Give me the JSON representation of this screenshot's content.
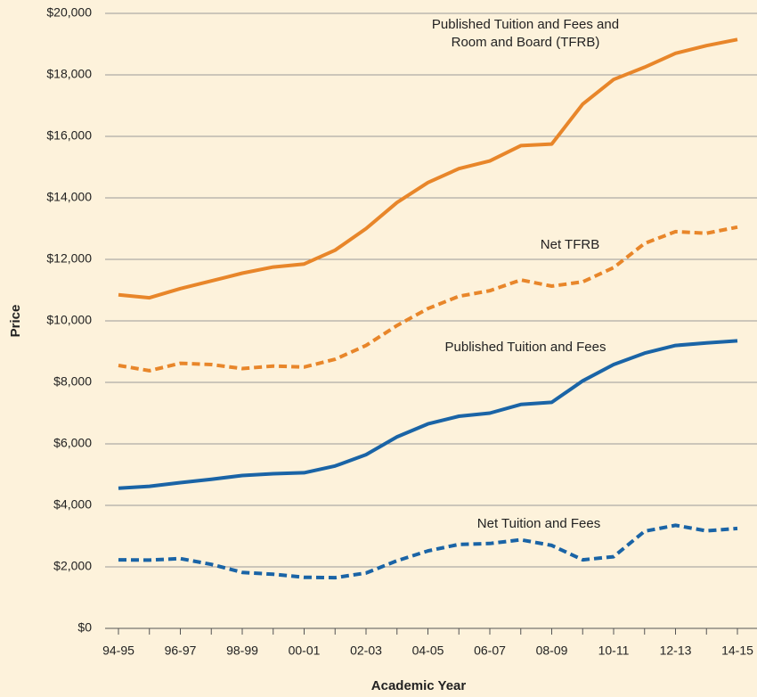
{
  "chart_data": {
    "type": "line",
    "xlabel": "Academic Year",
    "ylabel": "Price",
    "categories": [
      "94-95",
      null,
      "96-97",
      null,
      "98-99",
      null,
      "00-01",
      null,
      "02-03",
      null,
      "04-05",
      null,
      "06-07",
      null,
      "08-09",
      null,
      "10-11",
      null,
      "12-13",
      null,
      "14-15"
    ],
    "series": [
      {
        "name": "Published Tuition and Fees and Room and Board (TFRB)",
        "color": "#e8862a",
        "dash": false,
        "values": [
          10850,
          10750,
          11050,
          11300,
          11550,
          11750,
          11850,
          12300,
          13000,
          13850,
          14500,
          14950,
          15200,
          15700,
          15750,
          17050,
          17850,
          18250,
          18700,
          18950,
          19150
        ]
      },
      {
        "name": "Net TFRB",
        "color": "#e8862a",
        "dash": true,
        "values": [
          8550,
          8380,
          8620,
          8580,
          8450,
          8530,
          8500,
          8750,
          9200,
          9850,
          10400,
          10800,
          10980,
          11330,
          11130,
          11270,
          11730,
          12520,
          12900,
          12850,
          13050
        ]
      },
      {
        "name": "Published Tuition and Fees",
        "color": "#1a64a6",
        "dash": false,
        "values": [
          4560,
          4620,
          4740,
          4850,
          4970,
          5030,
          5060,
          5280,
          5650,
          6230,
          6650,
          6900,
          7000,
          7280,
          7350,
          8050,
          8580,
          8950,
          9200,
          9280,
          9350
        ]
      },
      {
        "name": "Net Tuition and Fees",
        "color": "#1a64a6",
        "dash": true,
        "values": [
          2230,
          2220,
          2270,
          2080,
          1820,
          1760,
          1660,
          1650,
          1800,
          2200,
          2520,
          2730,
          2760,
          2880,
          2700,
          2230,
          2330,
          3160,
          3350,
          3170,
          3250
        ]
      }
    ],
    "ylim": [
      0,
      20000
    ],
    "yticks": [
      {
        "value": 0,
        "label": "$0"
      },
      {
        "value": 2000,
        "label": "$2,000"
      },
      {
        "value": 4000,
        "label": "$4,000"
      },
      {
        "value": 6000,
        "label": "$6,000"
      },
      {
        "value": 8000,
        "label": "$8,000"
      },
      {
        "value": 10000,
        "label": "$10,000"
      },
      {
        "value": 12000,
        "label": "$12,000"
      },
      {
        "value": 14000,
        "label": "$14,000"
      },
      {
        "value": 16000,
        "label": "$16,000"
      },
      {
        "value": 18000,
        "label": "$18,000"
      },
      {
        "value": 20000,
        "label": "$20,000"
      }
    ],
    "grid": true
  }
}
